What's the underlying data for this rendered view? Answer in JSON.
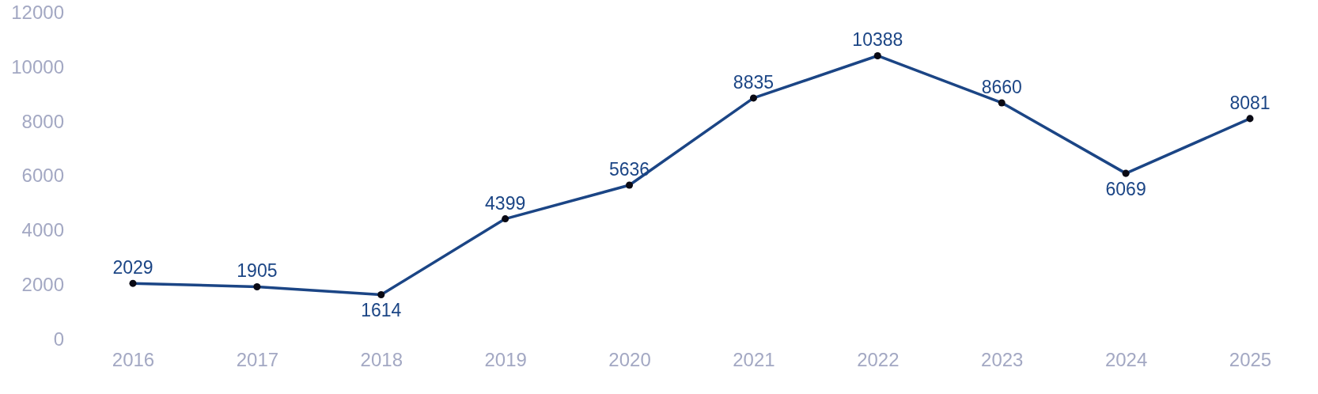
{
  "chart_data": {
    "type": "line",
    "categories": [
      "2016",
      "2017",
      "2018",
      "2019",
      "2020",
      "2021",
      "2022",
      "2023",
      "2024",
      "2025"
    ],
    "series": [
      {
        "color": "#1b4585",
        "values": [
          2029,
          1905,
          1614,
          4399,
          5636,
          8835,
          10388,
          8660,
          6069,
          8081
        ]
      }
    ],
    "ylim": [
      0,
      12000
    ],
    "yticks": [
      0,
      2000,
      4000,
      6000,
      8000,
      10000,
      12000
    ],
    "data_labels": true,
    "marker": "circle",
    "line_style": "solid"
  }
}
